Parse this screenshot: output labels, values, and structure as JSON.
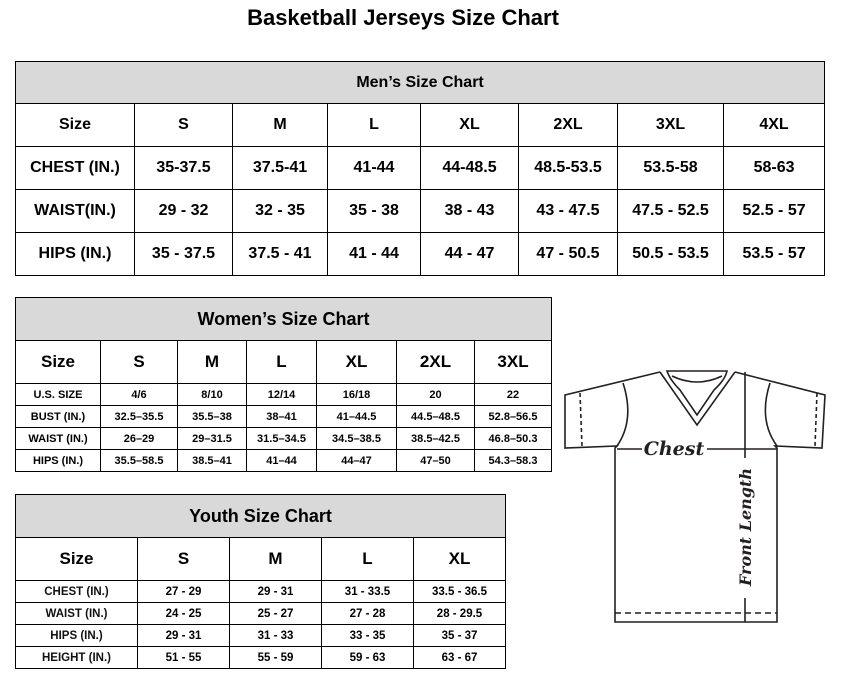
{
  "title": "Basketball Jerseys Size Chart",
  "men": {
    "title": "Men’s Size Chart",
    "header": [
      "Size",
      "S",
      "M",
      "L",
      "XL",
      "2XL",
      "3XL",
      "4XL"
    ],
    "rows": [
      [
        "CHEST (IN.)",
        "35-37.5",
        "37.5-41",
        "41-44",
        "44-48.5",
        "48.5-53.5",
        "53.5-58",
        "58-63"
      ],
      [
        "WAIST(IN.)",
        "29 - 32",
        "32 - 35",
        "35 - 38",
        "38 - 43",
        "43 - 47.5",
        "47.5 - 52.5",
        "52.5 - 57"
      ],
      [
        "HIPS (IN.)",
        "35 - 37.5",
        "37.5 - 41",
        "41 - 44",
        "44 - 47",
        "47 - 50.5",
        "50.5 - 53.5",
        "53.5 - 57"
      ]
    ]
  },
  "women": {
    "title": "Women’s Size Chart",
    "header": [
      "Size",
      "S",
      "M",
      "L",
      "XL",
      "2XL",
      "3XL"
    ],
    "rows": [
      [
        "U.S. SIZE",
        "4/6",
        "8/10",
        "12/14",
        "16/18",
        "20",
        "22"
      ],
      [
        "BUST (IN.)",
        "32.5–35.5",
        "35.5–38",
        "38–41",
        "41–44.5",
        "44.5–48.5",
        "52.8–56.5"
      ],
      [
        "WAIST (IN.)",
        "26–29",
        "29–31.5",
        "31.5–34.5",
        "34.5–38.5",
        "38.5–42.5",
        "46.8–50.3"
      ],
      [
        "HIPS (IN.)",
        "35.5–58.5",
        "38.5–41",
        "41–44",
        "44–47",
        "47–50",
        "54.3–58.3"
      ]
    ]
  },
  "youth": {
    "title": "Youth Size Chart",
    "header": [
      "Size",
      "S",
      "M",
      "L",
      "XL"
    ],
    "rows": [
      [
        "CHEST (IN.)",
        "27 - 29",
        "29 - 31",
        "31 - 33.5",
        "33.5 - 36.5"
      ],
      [
        "WAIST (IN.)",
        "24 - 25",
        "25 - 27",
        "27 - 28",
        "28 - 29.5"
      ],
      [
        "HIPS (IN.)",
        "29 - 31",
        "31 - 33",
        "33 - 35",
        "35 - 37"
      ],
      [
        "HEIGHT (IN.)",
        "51 - 55",
        "55 - 59",
        "59 - 63",
        "63 - 67"
      ]
    ]
  },
  "diagram": {
    "chest_label": "Chest",
    "length_label": "Front Length",
    "line_color": "#231f20"
  }
}
